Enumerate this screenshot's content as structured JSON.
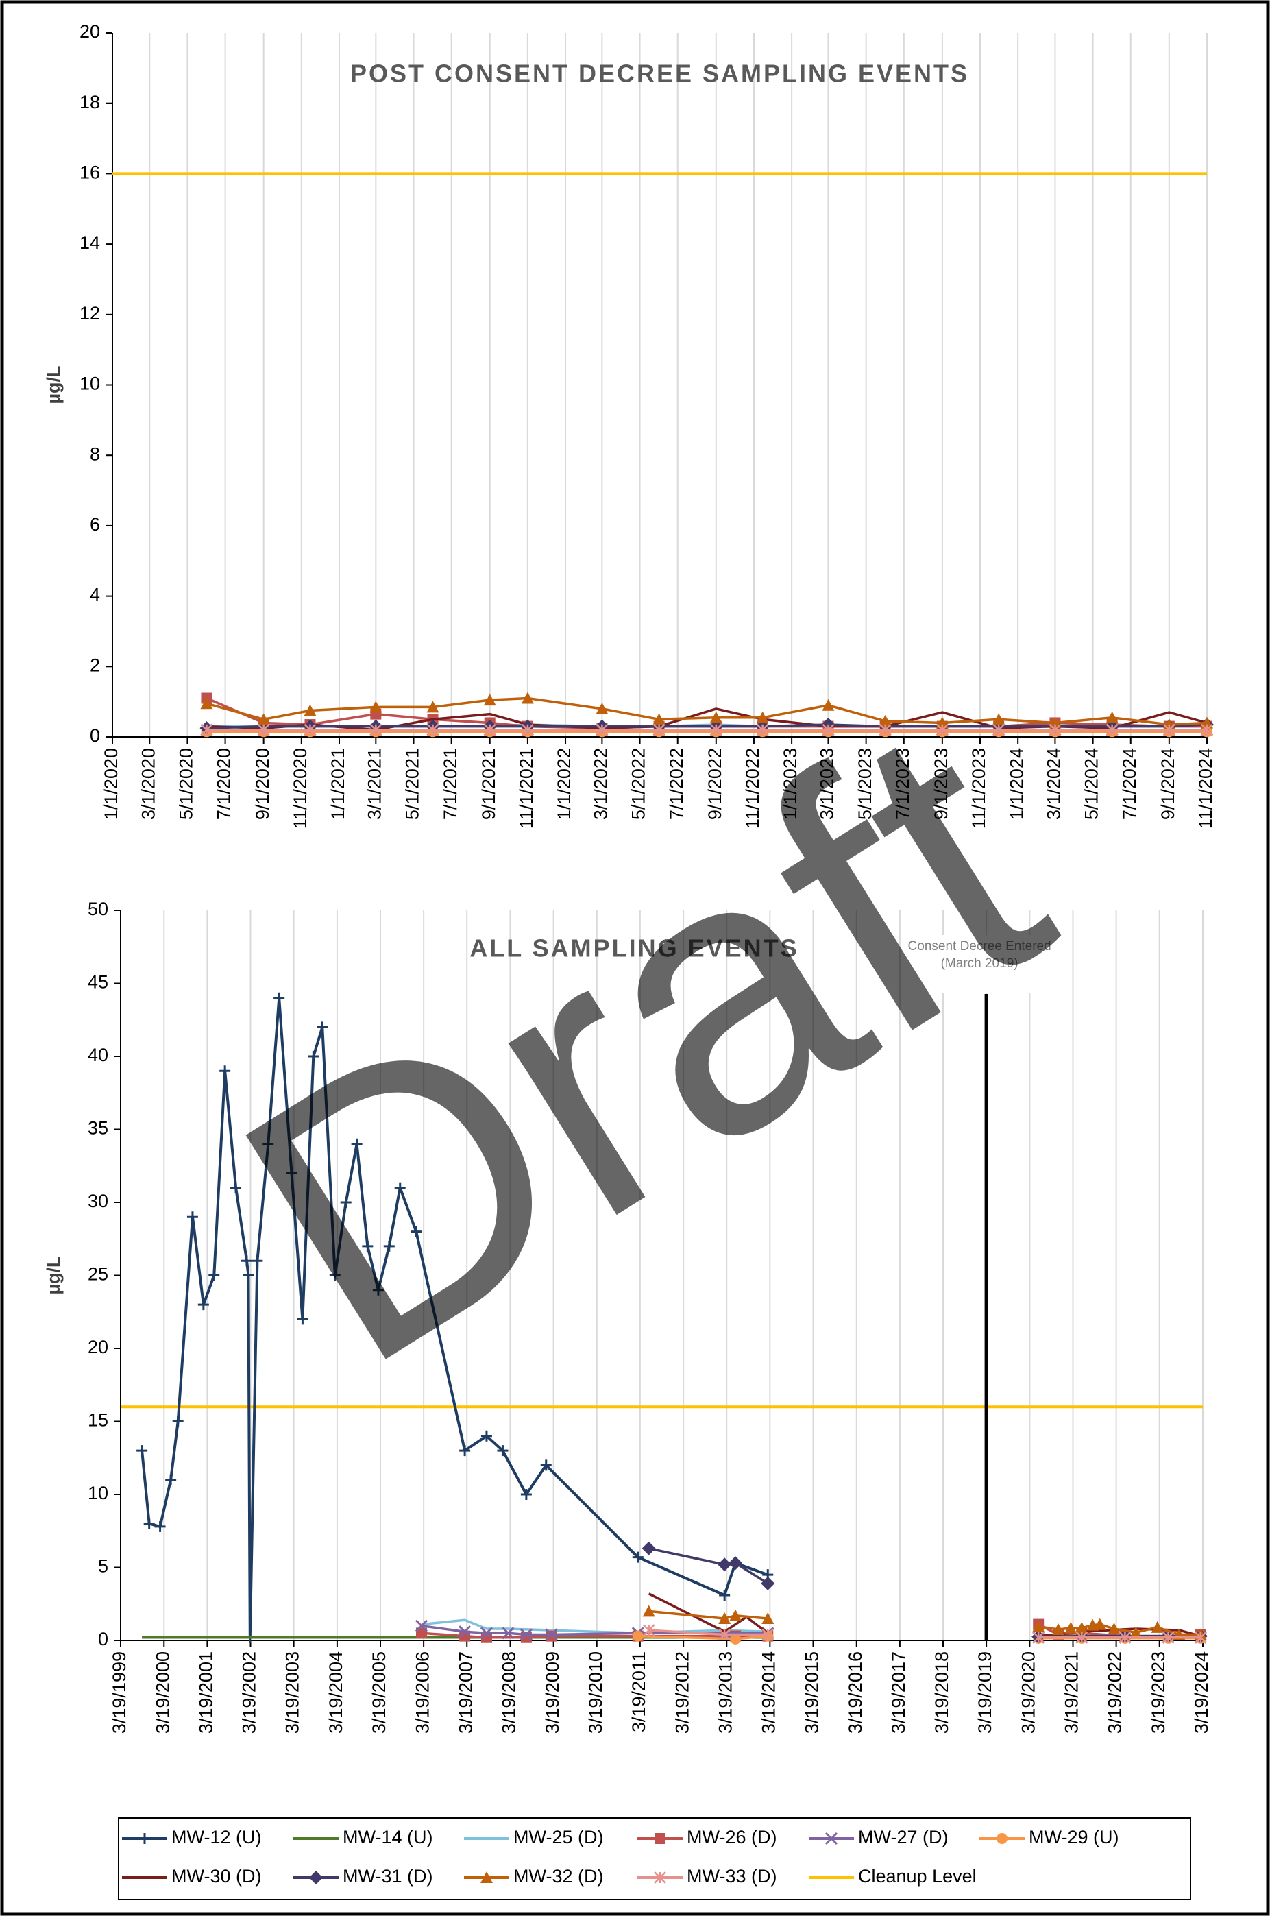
{
  "watermark": "Draft",
  "chart_data": [
    {
      "type": "line",
      "title": "POST CONSENT DECREE SAMPLING EVENTS",
      "y_label": "µg/L",
      "xlim": [
        "2020-01-01",
        "2024-11-01"
      ],
      "ylim": [
        0,
        20
      ],
      "yticks": [
        0,
        2,
        4,
        6,
        8,
        10,
        12,
        14,
        16,
        18,
        20
      ],
      "grid": "x",
      "xticks": [
        {
          "value": "2020-01-01",
          "label": "1/1/2020"
        },
        {
          "value": "2020-03-01",
          "label": "3/1/2020"
        },
        {
          "value": "2020-05-01",
          "label": "5/1/2020"
        },
        {
          "value": "2020-07-01",
          "label": "7/1/2020"
        },
        {
          "value": "2020-09-01",
          "label": "9/1/2020"
        },
        {
          "value": "2020-11-01",
          "label": "11/1/2020"
        },
        {
          "value": "2021-01-01",
          "label": "1/1/2021"
        },
        {
          "value": "2021-03-01",
          "label": "3/1/2021"
        },
        {
          "value": "2021-05-01",
          "label": "5/1/2021"
        },
        {
          "value": "2021-07-01",
          "label": "7/1/2021"
        },
        {
          "value": "2021-09-01",
          "label": "9/1/2021"
        },
        {
          "value": "2021-11-01",
          "label": "11/1/2021"
        },
        {
          "value": "2022-01-01",
          "label": "1/1/2022"
        },
        {
          "value": "2022-03-01",
          "label": "3/1/2022"
        },
        {
          "value": "2022-05-01",
          "label": "5/1/2022"
        },
        {
          "value": "2022-07-01",
          "label": "7/1/2022"
        },
        {
          "value": "2022-09-01",
          "label": "9/1/2022"
        },
        {
          "value": "2022-11-01",
          "label": "11/1/2022"
        },
        {
          "value": "2023-01-01",
          "label": "1/1/2023"
        },
        {
          "value": "2023-03-01",
          "label": "3/1/2023"
        },
        {
          "value": "2023-05-01",
          "label": "5/1/2023"
        },
        {
          "value": "2023-07-01",
          "label": "7/1/2023"
        },
        {
          "value": "2023-09-01",
          "label": "9/1/2023"
        },
        {
          "value": "2023-11-01",
          "label": "11/1/2023"
        },
        {
          "value": "2024-01-01",
          "label": "1/1/2024"
        },
        {
          "value": "2024-03-01",
          "label": "3/1/2024"
        },
        {
          "value": "2024-05-01",
          "label": "5/1/2024"
        },
        {
          "value": "2024-07-01",
          "label": "7/1/2024"
        },
        {
          "value": "2024-09-01",
          "label": "9/1/2024"
        },
        {
          "value": "2024-11-01",
          "label": "11/1/2024"
        }
      ],
      "reference_line": {
        "value": 16,
        "color": "#ffc000"
      },
      "x": [
        "2020-06-01",
        "2020-09-01",
        "2020-11-15",
        "2021-03-01",
        "2021-06-01",
        "2021-09-01",
        "2021-11-01",
        "2022-03-01",
        "2022-06-01",
        "2022-09-01",
        "2022-11-15",
        "2023-03-01",
        "2023-06-01",
        "2023-09-01",
        "2023-12-01",
        "2024-03-01",
        "2024-06-01",
        "2024-09-01",
        "2024-11-01"
      ],
      "series": [
        {
          "color": "#7fc1dc",
          "marker": "none",
          "values": [
            0.3,
            0.3,
            0.3,
            0.3,
            0.3,
            0.3,
            0.35,
            0.3,
            0.3,
            0.35,
            0.3,
            0.3,
            0.3,
            0.3,
            0.3,
            0.3,
            0.3,
            0.3,
            0.3
          ]
        },
        {
          "color": "#c0504d",
          "marker": "square",
          "values": [
            1.1,
            0.4,
            0.35,
            0.65,
            0.5,
            0.4,
            0.3,
            0.25,
            0.3,
            0.3,
            0.3,
            0.3,
            0.3,
            0.3,
            0.3,
            0.4,
            0.35,
            0.3,
            0.3
          ]
        },
        {
          "color": "#8064a2",
          "marker": "x",
          "values": [
            0.2,
            0.2,
            0.2,
            0.2,
            0.2,
            0.2,
            0.2,
            0.2,
            0.2,
            0.2,
            0.2,
            0.2,
            0.2,
            0.2,
            0.2,
            0.2,
            0.2,
            0.2,
            0.2
          ]
        },
        {
          "color": "#f79646",
          "marker": "circle",
          "values": [
            0.15,
            0.15,
            0.15,
            0.15,
            0.15,
            0.15,
            0.15,
            0.15,
            0.15,
            0.15,
            0.15,
            0.15,
            0.15,
            0.15,
            0.15,
            0.15,
            0.15,
            0.15,
            0.15
          ]
        },
        {
          "color": "#7b1c1c",
          "marker": "none",
          "values": [
            0.3,
            0.25,
            0.35,
            0.2,
            0.5,
            0.65,
            0.35,
            0.25,
            0.3,
            0.8,
            0.5,
            0.3,
            0.3,
            0.7,
            0.25,
            0.3,
            0.25,
            0.7,
            0.4
          ]
        },
        {
          "color": "#403a6b",
          "marker": "diamond",
          "values": [
            0.25,
            0.3,
            0.3,
            0.3,
            0.3,
            0.3,
            0.3,
            0.3,
            0.3,
            0.3,
            0.3,
            0.35,
            0.3,
            0.3,
            0.3,
            0.3,
            0.3,
            0.3,
            0.35
          ]
        },
        {
          "color": "#c0600a",
          "marker": "triangle",
          "values": [
            0.95,
            0.5,
            0.75,
            0.85,
            0.85,
            1.05,
            1.1,
            0.8,
            0.5,
            0.55,
            0.55,
            0.9,
            0.45,
            0.4,
            0.5,
            0.4,
            0.55,
            0.35,
            0.4
          ]
        },
        {
          "color": "#e6918b",
          "marker": "asterisk",
          "values": [
            0.2,
            0.2,
            0.2,
            0.2,
            0.2,
            0.2,
            0.2,
            0.2,
            0.2,
            0.2,
            0.2,
            0.2,
            0.2,
            0.2,
            0.2,
            0.2,
            0.2,
            0.2,
            0.2
          ]
        }
      ]
    },
    {
      "type": "line",
      "title": "ALL SAMPLING EVENTS",
      "y_label": "µg/L",
      "xlim": [
        "1999-03-19",
        "2024-03-19"
      ],
      "ylim": [
        0,
        50
      ],
      "yticks": [
        0,
        5,
        10,
        15,
        20,
        25,
        30,
        35,
        40,
        45,
        50
      ],
      "grid": "x",
      "xticks": [
        {
          "value": "1999-03-19",
          "label": "3/19/1999"
        },
        {
          "value": "2000-03-19",
          "label": "3/19/2000"
        },
        {
          "value": "2001-03-19",
          "label": "3/19/2001"
        },
        {
          "value": "2002-03-19",
          "label": "3/19/2002"
        },
        {
          "value": "2003-03-19",
          "label": "3/19/2003"
        },
        {
          "value": "2004-03-19",
          "label": "3/19/2004"
        },
        {
          "value": "2005-03-19",
          "label": "3/19/2005"
        },
        {
          "value": "2006-03-19",
          "label": "3/19/2006"
        },
        {
          "value": "2007-03-19",
          "label": "3/19/2007"
        },
        {
          "value": "2008-03-19",
          "label": "3/19/2008"
        },
        {
          "value": "2009-03-19",
          "label": "3/19/2009"
        },
        {
          "value": "2010-03-19",
          "label": "3/19/2010"
        },
        {
          "value": "2011-03-19",
          "label": "3/19/2011"
        },
        {
          "value": "2012-03-19",
          "label": "3/19/2012"
        },
        {
          "value": "2013-03-19",
          "label": "3/19/2013"
        },
        {
          "value": "2014-03-19",
          "label": "3/19/2014"
        },
        {
          "value": "2015-03-19",
          "label": "3/19/2015"
        },
        {
          "value": "2016-03-19",
          "label": "3/19/2016"
        },
        {
          "value": "2017-03-19",
          "label": "3/19/2017"
        },
        {
          "value": "2018-03-19",
          "label": "3/19/2018"
        },
        {
          "value": "2019-03-19",
          "label": "3/19/2019"
        },
        {
          "value": "2020-03-19",
          "label": "3/19/2020"
        },
        {
          "value": "2021-03-19",
          "label": "3/19/2021"
        },
        {
          "value": "2022-03-19",
          "label": "3/19/2022"
        },
        {
          "value": "2023-03-19",
          "label": "3/19/2023"
        },
        {
          "value": "2024-03-19",
          "label": "3/19/2024"
        }
      ],
      "reference_line": {
        "name": "Cleanup Level",
        "value": 16,
        "color": "#ffc000"
      },
      "annotation": {
        "x": "2019-03-19",
        "text": [
          "Consent Decree Entered",
          "(March 2019)"
        ]
      },
      "series": [
        {
          "name": "MW-12 (U)",
          "color": "#1f3d63",
          "marker": "plus",
          "x": [
            "1999-09-15",
            "1999-11-15",
            "2000-02-15",
            "2000-05-15",
            "2000-07-15",
            "2000-11-15",
            "2001-02-15",
            "2001-05-15",
            "2001-08-15",
            "2001-11-15",
            "2002-02-15",
            "2002-03-01",
            "2002-03-15",
            "2002-05-15",
            "2002-08-15",
            "2002-11-15",
            "2003-03-01",
            "2003-06-01",
            "2003-09-01",
            "2003-11-15",
            "2004-03-01",
            "2004-06-01",
            "2004-09-01",
            "2004-12-01",
            "2005-03-01",
            "2005-06-01",
            "2005-09-01",
            "2006-01-15",
            "2007-03-01",
            "2007-09-01",
            "2008-01-15",
            "2008-08-01",
            "2009-01-15",
            "2011-03-01",
            "2013-03-01",
            "2013-06-01",
            "2014-03-01"
          ],
          "values": [
            13,
            8,
            7.8,
            11,
            15,
            29,
            23,
            25,
            39,
            31,
            26,
            25,
            0.2,
            26,
            34,
            44,
            32,
            22,
            40,
            42,
            25,
            30,
            34,
            27,
            24,
            27,
            31,
            28,
            13,
            14,
            13,
            10,
            12,
            5.7,
            3.1,
            5.3,
            4.5
          ]
        },
        {
          "name": "MW-14 (U)",
          "color": "#4f7a28",
          "marker": "none",
          "x": [
            "1999-09-15",
            "2001-03-01",
            "2003-03-01",
            "2005-03-01",
            "2006-03-01",
            "2009-03-01",
            "2011-03-01",
            "2014-03-01"
          ],
          "values": [
            0.2,
            0.2,
            0.2,
            0.2,
            0.2,
            0.2,
            0.2,
            0.2
          ]
        },
        {
          "name": "MW-25 (D)",
          "color": "#7fc1dc",
          "marker": "none",
          "x": [
            "2006-03-01",
            "2007-03-01",
            "2007-09-01",
            "2008-03-01",
            "2009-03-01",
            "2011-03-01",
            "2013-03-01",
            "2014-03-01",
            "2017-01-01",
            "2020-06-01",
            "2021-06-01",
            "2022-06-01",
            "2023-06-01",
            "2024-03-01"
          ],
          "values": [
            1.1,
            1.4,
            0.8,
            0.8,
            0.7,
            0.5,
            0.7,
            0.6,
            null,
            0.3,
            0.3,
            0.3,
            0.3,
            0.3
          ]
        },
        {
          "name": "MW-26 (D)",
          "color": "#c0504d",
          "marker": "square",
          "x": [
            "2006-03-01",
            "2007-03-01",
            "2007-09-01",
            "2008-08-01",
            "2009-03-01",
            "2011-03-01",
            "2013-06-01",
            "2014-03-01",
            "2017-01-01",
            "2020-06-01",
            "2020-11-15",
            "2021-06-01",
            "2022-06-01",
            "2023-06-01",
            "2024-03-01"
          ],
          "values": [
            0.5,
            0.3,
            0.2,
            0.2,
            0.3,
            0.3,
            0.3,
            0.3,
            null,
            1.1,
            0.4,
            0.5,
            0.3,
            0.3,
            0.4
          ]
        },
        {
          "name": "MW-27 (D)",
          "color": "#8064a2",
          "marker": "x",
          "x": [
            "2006-03-01",
            "2007-03-01",
            "2007-09-01",
            "2008-03-01",
            "2008-08-01",
            "2009-03-01",
            "2011-03-01",
            "2013-03-01",
            "2014-03-01",
            "2017-01-01",
            "2020-06-01",
            "2021-06-01",
            "2022-06-01",
            "2023-06-01",
            "2024-03-01"
          ],
          "values": [
            1.0,
            0.6,
            0.5,
            0.5,
            0.4,
            0.4,
            0.5,
            0.5,
            0.5,
            null,
            0.2,
            0.2,
            0.2,
            0.2,
            0.2
          ]
        },
        {
          "name": "MW-29 (U)",
          "color": "#f79646",
          "marker": "circle",
          "x": [
            "2011-03-01",
            "2013-06-01",
            "2014-03-01",
            "2017-01-01",
            "2020-06-01",
            "2021-06-01",
            "2022-06-01",
            "2023-06-01",
            "2024-03-01"
          ],
          "values": [
            0.3,
            0.1,
            0.3,
            null,
            0.15,
            0.15,
            0.15,
            0.15,
            0.15
          ]
        },
        {
          "name": "MW-30 (D)",
          "color": "#7b1c1c",
          "marker": "none",
          "x": [
            "2011-06-01",
            "2013-03-01",
            "2013-09-01",
            "2014-03-01",
            "2017-01-01",
            "2020-06-01",
            "2021-09-01",
            "2022-09-01",
            "2023-09-01",
            "2024-03-01"
          ],
          "values": [
            3.2,
            0.6,
            1.6,
            0.5,
            null,
            0.3,
            0.65,
            0.8,
            0.7,
            0.3
          ]
        },
        {
          "name": "MW-31 (D)",
          "color": "#403a6b",
          "marker": "diamond",
          "x": [
            "2011-06-01",
            "2013-03-01",
            "2013-06-01",
            "2014-03-01",
            "2017-01-01",
            "2020-06-01",
            "2021-06-01",
            "2022-06-01",
            "2023-06-01",
            "2024-03-01"
          ],
          "values": [
            6.3,
            5.2,
            5.3,
            3.9,
            null,
            0.25,
            0.3,
            0.3,
            0.3,
            0.3
          ]
        },
        {
          "name": "MW-32 (D)",
          "color": "#c0600a",
          "marker": "triangle",
          "x": [
            "2011-06-01",
            "2013-03-01",
            "2013-06-01",
            "2014-03-01",
            "2017-01-01",
            "2020-06-01",
            "2020-11-15",
            "2021-03-01",
            "2021-06-01",
            "2021-09-01",
            "2021-11-01",
            "2022-03-01",
            "2022-09-01",
            "2023-03-01",
            "2023-09-01",
            "2024-03-01"
          ],
          "values": [
            2.0,
            1.5,
            1.7,
            1.5,
            null,
            0.95,
            0.75,
            0.85,
            0.85,
            1.05,
            1.1,
            0.8,
            0.55,
            0.9,
            0.4,
            0.4
          ]
        },
        {
          "name": "MW-33 (D)",
          "color": "#e6918b",
          "marker": "asterisk",
          "x": [
            "2011-06-01",
            "2013-03-01",
            "2014-03-01",
            "2017-01-01",
            "2020-06-01",
            "2021-06-01",
            "2022-06-01",
            "2023-06-01",
            "2024-03-01"
          ],
          "values": [
            0.7,
            0.4,
            0.4,
            null,
            0.2,
            0.2,
            0.2,
            0.2,
            0.2
          ]
        }
      ]
    }
  ]
}
